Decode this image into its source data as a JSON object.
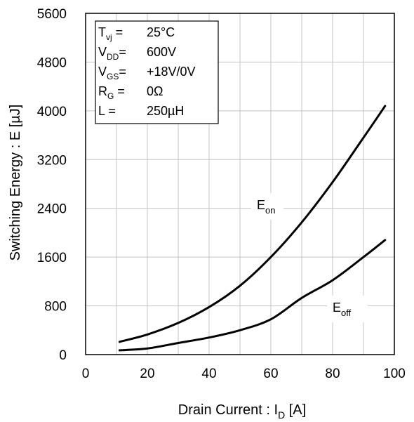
{
  "chart_data": {
    "type": "line",
    "title": "",
    "xlabel_main": "Drain Current : I",
    "xlabel_sub": "D",
    "xlabel_unit": " [A]",
    "ylabel": "Switching Energy : E [µJ]",
    "xlim": [
      0,
      100
    ],
    "ylim": [
      0,
      5600
    ],
    "xticks": [
      "0",
      "20",
      "40",
      "60",
      "80",
      "100"
    ],
    "yticks": [
      "0",
      "800",
      "1600",
      "2400",
      "3200",
      "4000",
      "4800",
      "5600"
    ],
    "grid": true,
    "conditions": [
      {
        "sym": "T",
        "sub": "vj",
        "eq": " =",
        "val": "25°C"
      },
      {
        "sym": "V",
        "sub": "DD",
        "eq": "=",
        "val": "600V"
      },
      {
        "sym": "V",
        "sub": "GS",
        "eq": "=",
        "val": "+18V/0V"
      },
      {
        "sym": "R",
        "sub": "G",
        "eq": " =",
        "val": "0Ω"
      },
      {
        "sym": "L",
        "sub": "",
        "eq": " =",
        "val": "250µH"
      }
    ],
    "series": [
      {
        "name": "Eon",
        "label_main": "E",
        "label_sub": "on",
        "color": "#000000",
        "x": [
          11,
          20,
          30,
          40,
          50,
          60,
          70,
          80,
          90,
          97
        ],
        "y": [
          210,
          330,
          520,
          780,
          1130,
          1600,
          2170,
          2830,
          3560,
          4080
        ]
      },
      {
        "name": "Eoff",
        "label_main": "E",
        "label_sub": "off",
        "color": "#000000",
        "x": [
          11,
          20,
          30,
          40,
          50,
          60,
          70,
          80,
          90,
          97
        ],
        "y": [
          70,
          100,
          190,
          280,
          400,
          580,
          930,
          1220,
          1600,
          1880
        ]
      }
    ]
  }
}
